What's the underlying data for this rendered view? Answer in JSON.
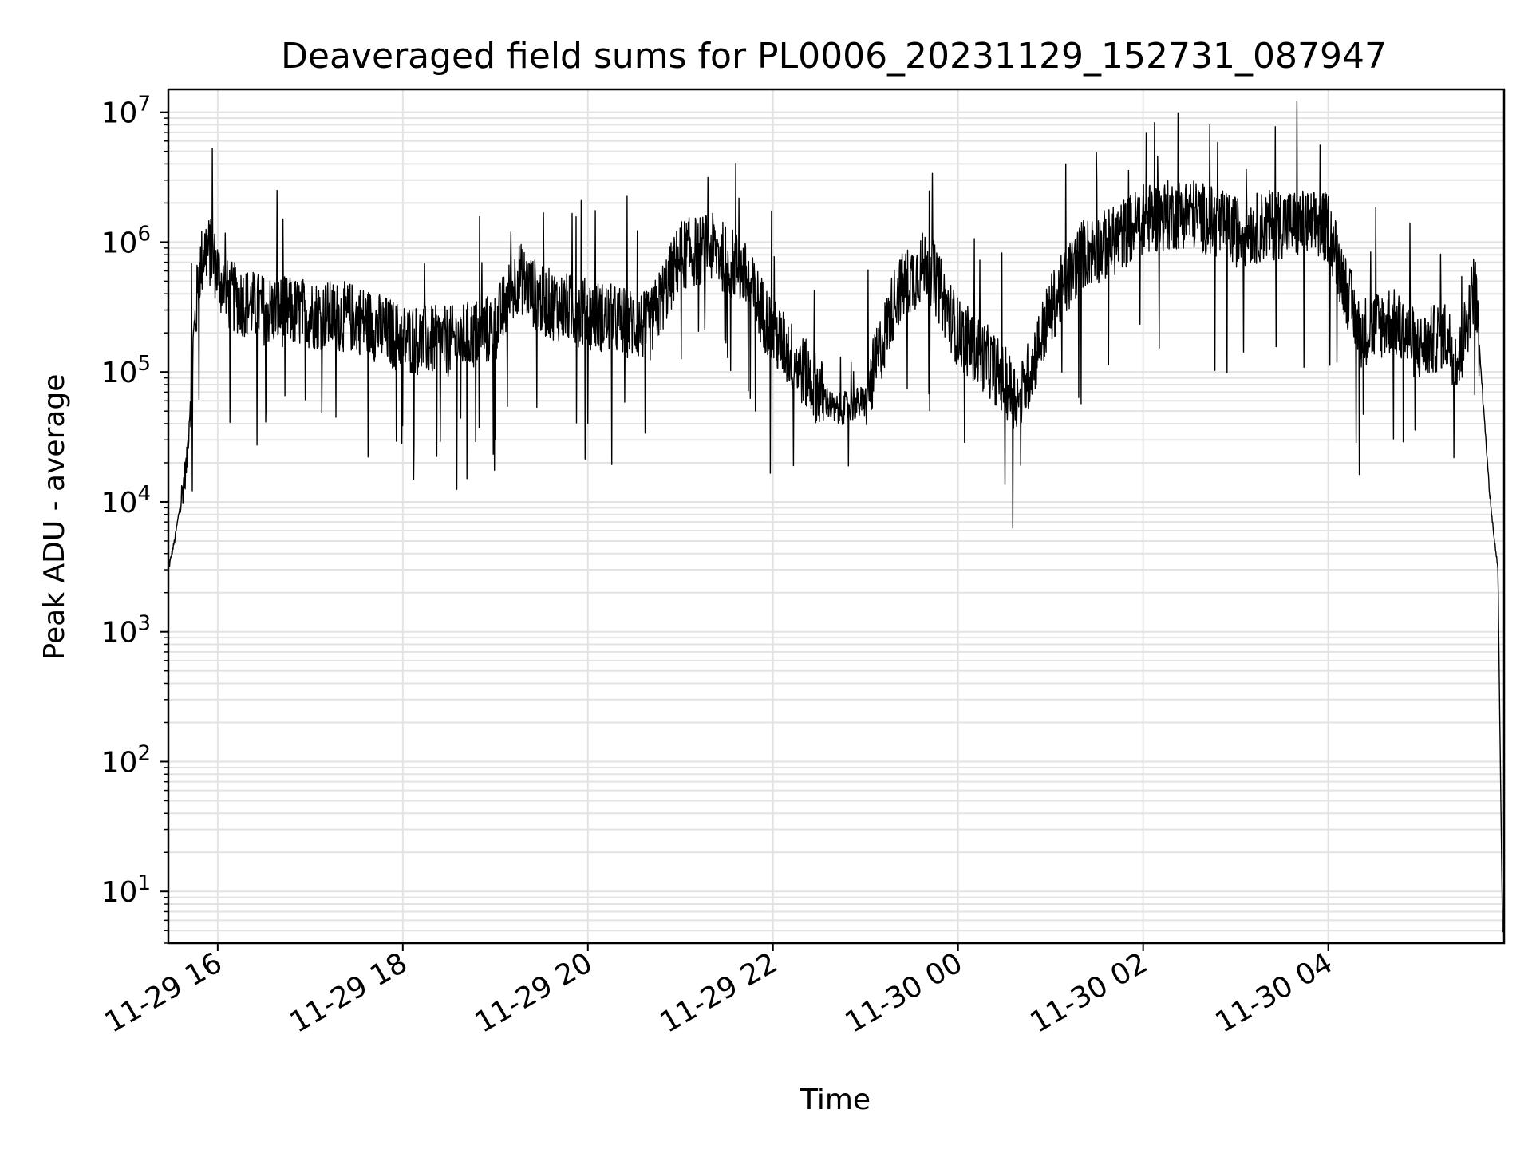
{
  "chart_data": {
    "type": "line",
    "title": "Deaveraged field sums for PL0006_20231129_152731_087947",
    "xlabel": "Time",
    "ylabel": "Peak ADU - average",
    "yscale": "log",
    "ylim": [
      4,
      15000000
    ],
    "xlim": [
      "2023-11-29 15:28",
      "2023-11-30 05:54"
    ],
    "grid": true,
    "grid_color": "#e3e3e3",
    "line_color": "#000000",
    "x_ticks": [
      {
        "value": "2023-11-29 16:00",
        "label": "11-29 16"
      },
      {
        "value": "2023-11-29 18:00",
        "label": "11-29 18"
      },
      {
        "value": "2023-11-29 20:00",
        "label": "11-29 20"
      },
      {
        "value": "2023-11-29 22:00",
        "label": "11-29 22"
      },
      {
        "value": "2023-11-30 00:00",
        "label": "11-30 00"
      },
      {
        "value": "2023-11-30 02:00",
        "label": "11-30 02"
      },
      {
        "value": "2023-11-30 04:00",
        "label": "11-30 04"
      }
    ],
    "y_ticks": [
      {
        "value": 10,
        "base": "10",
        "exp": "1"
      },
      {
        "value": 100,
        "base": "10",
        "exp": "2"
      },
      {
        "value": 1000,
        "base": "10",
        "exp": "3"
      },
      {
        "value": 10000,
        "base": "10",
        "exp": "4"
      },
      {
        "value": 100000,
        "base": "10",
        "exp": "5"
      },
      {
        "value": 1000000,
        "base": "10",
        "exp": "6"
      },
      {
        "value": 10000000,
        "base": "10",
        "exp": "7"
      }
    ],
    "series": [
      {
        "x": [
          "2023-11-29 15:28",
          "2023-11-29 15:32",
          "2023-11-29 15:36",
          "2023-11-29 15:40",
          "2023-11-29 15:44",
          "2023-11-29 15:48",
          "2023-11-29 15:52",
          "2023-11-29 15:56",
          "2023-11-29 16:05",
          "2023-11-29 16:30",
          "2023-11-29 17:00",
          "2023-11-29 17:30",
          "2023-11-29 18:00",
          "2023-11-29 18:30",
          "2023-11-29 19:00",
          "2023-11-29 19:15",
          "2023-11-29 19:30",
          "2023-11-29 20:00",
          "2023-11-29 20:40",
          "2023-11-29 21:00",
          "2023-11-29 21:20",
          "2023-11-29 21:40",
          "2023-11-29 22:00",
          "2023-11-29 22:20",
          "2023-11-29 22:40",
          "2023-11-29 23:00",
          "2023-11-29 23:20",
          "2023-11-29 23:40",
          "2023-11-30 00:00",
          "2023-11-30 00:20",
          "2023-11-30 00:40",
          "2023-11-30 01:00",
          "2023-11-30 01:20",
          "2023-11-30 01:40",
          "2023-11-30 02:00",
          "2023-11-30 02:30",
          "2023-11-30 03:00",
          "2023-11-30 03:30",
          "2023-11-30 04:00",
          "2023-11-30 04:20",
          "2023-11-30 04:40",
          "2023-11-30 05:00",
          "2023-11-30 05:15",
          "2023-11-30 05:25",
          "2023-11-30 05:35",
          "2023-11-30 05:45",
          "2023-11-30 05:50",
          "2023-11-30 05:53"
        ],
        "y": [
          3000,
          5000,
          10000,
          20000,
          150000,
          600000,
          900000,
          800000,
          400000,
          300000,
          280000,
          260000,
          180000,
          170000,
          220000,
          550000,
          350000,
          280000,
          220000,
          800000,
          900000,
          600000,
          200000,
          100000,
          50000,
          60000,
          400000,
          700000,
          200000,
          120000,
          60000,
          300000,
          800000,
          1000000,
          1500000,
          1700000,
          1200000,
          1400000,
          1300000,
          200000,
          250000,
          150000,
          200000,
          120000,
          500000,
          10000,
          3000,
          5
        ]
      }
    ]
  }
}
